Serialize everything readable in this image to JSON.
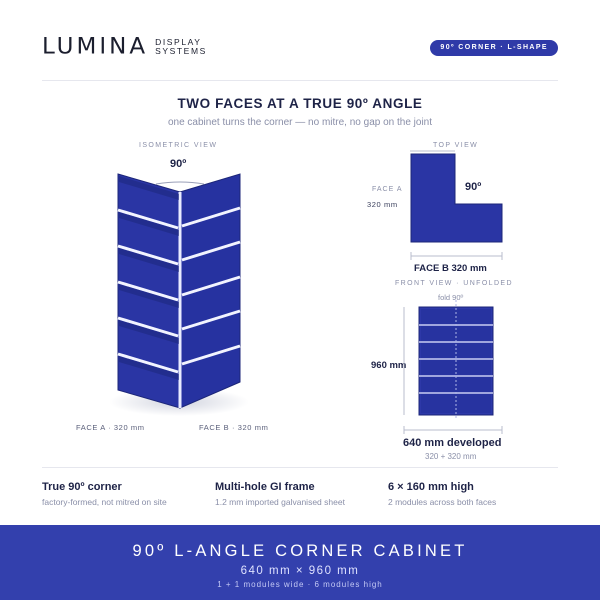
{
  "brand": {
    "wordmark": "LUMINA",
    "line1": "DISPLAY",
    "line2": "SYSTEMS"
  },
  "badge": "90º CORNER · L-SHAPE",
  "headline": "TWO FACES AT A TRUE 90º ANGLE",
  "subline": "one cabinet turns the corner — no mitre, no gap on the joint",
  "isometric": {
    "caption": "ISOMETRIC VIEW",
    "angle": "90º",
    "face_a": "FACE A · 320 mm",
    "face_b": "FACE B · 320 mm"
  },
  "top_view": {
    "caption": "TOP VIEW",
    "face_a_label": "FACE A",
    "face_a_dim": "320 mm",
    "angle": "90º",
    "face_b": "FACE B  320 mm"
  },
  "front_view": {
    "caption": "FRONT VIEW · UNFOLDED",
    "fold": "fold  90º",
    "height": "960 mm",
    "developed": "640 mm developed",
    "sum": "320 + 320 mm"
  },
  "features": [
    {
      "title": "True 90º corner",
      "sub": "factory-formed, not mitred on site"
    },
    {
      "title": "Multi-hole GI frame",
      "sub": "1.2 mm imported galvanised sheet"
    },
    {
      "title": "6 × 160 mm high",
      "sub": "2 modules across both faces"
    }
  ],
  "footer": {
    "title": "90º L-ANGLE CORNER CABINET",
    "dims": "640 mm  ×  960 mm",
    "modules": "1 + 1 modules wide  ·  6 modules high"
  },
  "colors": {
    "accent": "#3340ad",
    "panel": "#2b36a6",
    "panel_dark": "#1f2a7e",
    "ink": "#1e2347"
  }
}
